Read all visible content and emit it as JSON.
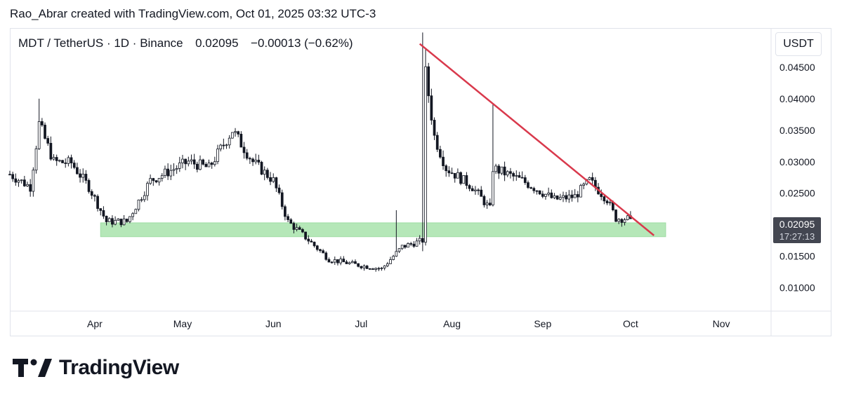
{
  "header": {
    "credit": "Rao_Abrar created with TradingView.com, Oct 01, 2025 03:32 UTC-3"
  },
  "legend": {
    "symbol": "MDT / TetherUS · 1D · Binance",
    "last": "0.02095",
    "change": "−0.00013 (−0.62%)"
  },
  "price_axis": {
    "unit": "USDT"
  },
  "last_price_label": {
    "price": "0.02095",
    "countdown": "17:27:13"
  },
  "brand": {
    "name": "TradingView"
  },
  "colors": {
    "candle": "#131722",
    "trendline": "#d9394c",
    "zone": "#a9e3ac",
    "label_bg": "#434651"
  },
  "chart_data": {
    "type": "candlestick",
    "title": "MDT / TetherUS · 1D · Binance",
    "y_ticks": [
      0.01,
      0.015,
      0.025,
      0.03,
      0.035,
      0.04,
      0.045
    ],
    "y_tick_labels": [
      "0.01000",
      "0.01500",
      "0.02500",
      "0.03000",
      "0.03500",
      "0.04000",
      "0.04500"
    ],
    "ylim": [
      0.0064,
      0.0511
    ],
    "x_ticks": [
      "2025-04-01",
      "2025-05-01",
      "2025-06-01",
      "2025-07-01",
      "2025-08-01",
      "2025-09-01",
      "2025-10-01",
      "2025-11-01"
    ],
    "x_tick_labels": [
      "Apr",
      "May",
      "Jun",
      "Jul",
      "Aug",
      "Sep",
      "Oct",
      "Nov"
    ],
    "xlim": [
      "2025-03-03",
      "2025-11-18"
    ],
    "grid": false,
    "support_zone": {
      "y_low": 0.0181,
      "y_high": 0.0203,
      "x_start": "2025-04-03",
      "x_end": "2025-10-13"
    },
    "trendline": {
      "start": {
        "x": "2025-07-21",
        "y": 0.0487
      },
      "end": {
        "x": "2025-10-09",
        "y": 0.0183
      }
    },
    "last_price": 0.02095,
    "key_points": [
      {
        "x": "2025-03-03",
        "y": 0.028
      },
      {
        "x": "2025-03-10",
        "y": 0.026
      },
      {
        "x": "2025-03-13",
        "y": 0.036
      },
      {
        "x": "2025-03-18",
        "y": 0.03
      },
      {
        "x": "2025-03-24",
        "y": 0.0298
      },
      {
        "x": "2025-03-30",
        "y": 0.026
      },
      {
        "x": "2025-04-05",
        "y": 0.0205
      },
      {
        "x": "2025-04-12",
        "y": 0.0205
      },
      {
        "x": "2025-04-20",
        "y": 0.027
      },
      {
        "x": "2025-05-03",
        "y": 0.03
      },
      {
        "x": "2025-05-10",
        "y": 0.029
      },
      {
        "x": "2025-05-18",
        "y": 0.035
      },
      {
        "x": "2025-05-25",
        "y": 0.03
      },
      {
        "x": "2025-06-01",
        "y": 0.027
      },
      {
        "x": "2025-06-06",
        "y": 0.0205
      },
      {
        "x": "2025-06-12",
        "y": 0.018
      },
      {
        "x": "2025-06-20",
        "y": 0.0145
      },
      {
        "x": "2025-07-01",
        "y": 0.0135
      },
      {
        "x": "2025-07-08",
        "y": 0.013
      },
      {
        "x": "2025-07-15",
        "y": 0.0165
      },
      {
        "x": "2025-07-22",
        "y": 0.0175
      },
      {
        "x": "2025-07-23",
        "y": 0.044
      },
      {
        "x": "2025-07-26",
        "y": 0.034
      },
      {
        "x": "2025-07-30",
        "y": 0.029
      },
      {
        "x": "2025-08-08",
        "y": 0.026
      },
      {
        "x": "2025-08-14",
        "y": 0.0225
      },
      {
        "x": "2025-08-15",
        "y": 0.029
      },
      {
        "x": "2025-08-25",
        "y": 0.027
      },
      {
        "x": "2025-09-05",
        "y": 0.024
      },
      {
        "x": "2025-09-12",
        "y": 0.0245
      },
      {
        "x": "2025-09-17",
        "y": 0.027
      },
      {
        "x": "2025-09-23",
        "y": 0.024
      },
      {
        "x": "2025-09-26",
        "y": 0.021
      },
      {
        "x": "2025-10-01",
        "y": 0.02095
      }
    ]
  }
}
